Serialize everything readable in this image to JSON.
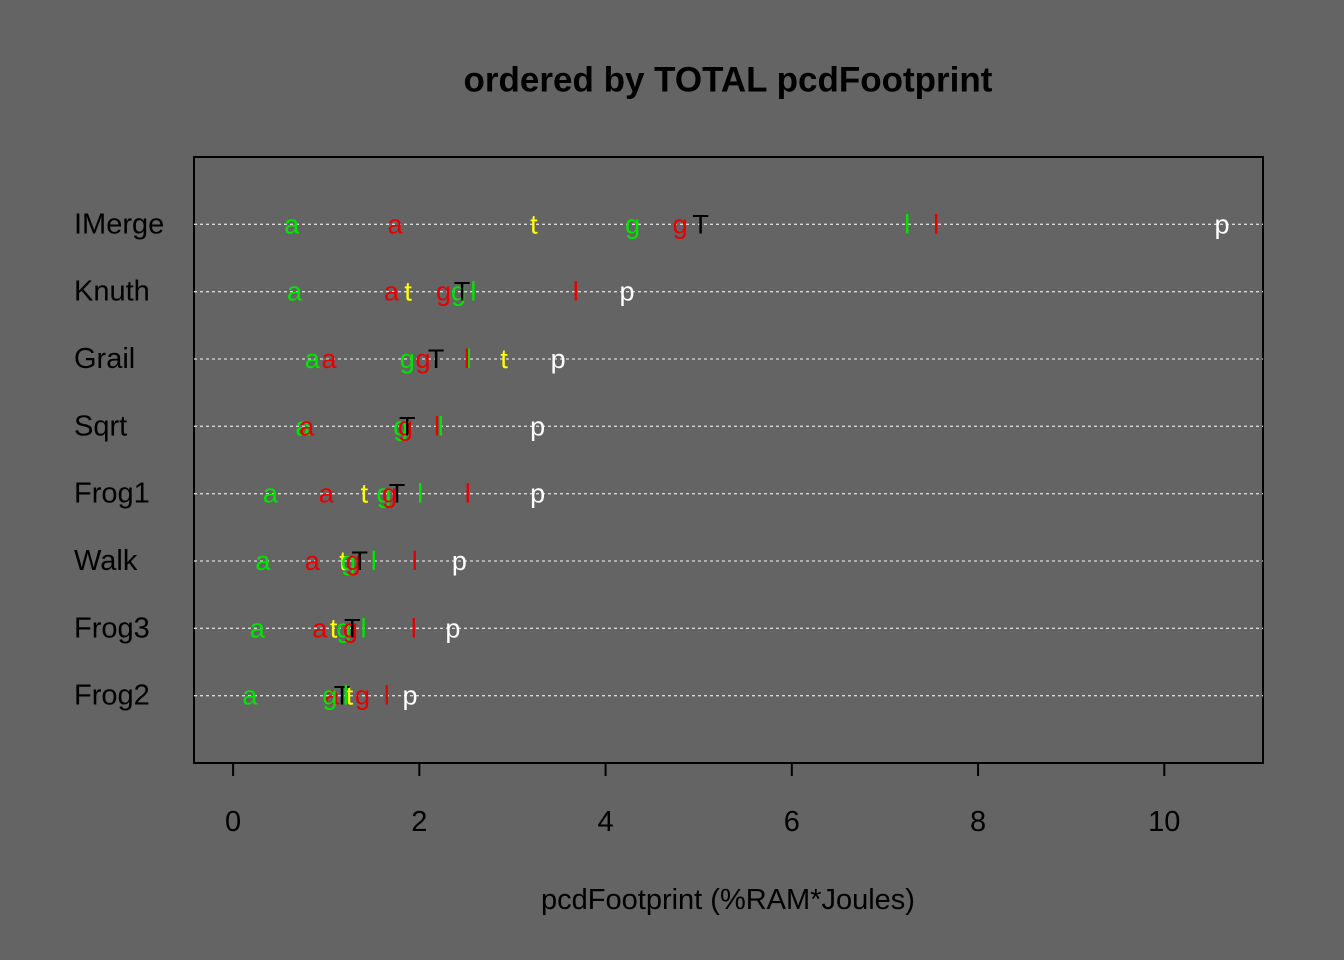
{
  "chart_data": {
    "type": "dot",
    "title": "ordered by TOTAL pcdFootprint",
    "x_label": "pcdFootprint (%RAM*Joules)",
    "categories": [
      "IMerge",
      "Knuth",
      "Grail",
      "Sqrt",
      "Frog1",
      "Walk",
      "Frog3",
      "Frog2"
    ],
    "xlim": [
      -0.42,
      11.06
    ],
    "xticks": [
      0,
      2,
      4,
      6,
      8,
      10
    ],
    "grid": true,
    "series": [
      {
        "symbol": "a",
        "color": "#00e600",
        "values": [
          0.63,
          0.66,
          0.85,
          0.75,
          0.4,
          0.32,
          0.26,
          0.18
        ]
      },
      {
        "symbol": "a",
        "color": "#e60000",
        "values": [
          1.74,
          1.7,
          1.03,
          0.79,
          1.0,
          0.85,
          0.93,
          1.06
        ]
      },
      {
        "symbol": "t",
        "color": "#ffff00",
        "values": [
          3.23,
          1.88,
          2.91,
          1.87,
          1.41,
          1.18,
          1.08,
          1.25
        ]
      },
      {
        "symbol": "g",
        "color": "#00e600",
        "values": [
          4.29,
          2.42,
          1.87,
          1.8,
          1.62,
          1.24,
          1.19,
          1.04
        ]
      },
      {
        "symbol": "g",
        "color": "#e60000",
        "values": [
          4.8,
          2.26,
          2.04,
          1.85,
          1.68,
          1.29,
          1.26,
          1.39
        ]
      },
      {
        "symbol": "T",
        "color": "#000000",
        "values": [
          5.02,
          2.46,
          2.18,
          1.87,
          1.76,
          1.36,
          1.28,
          1.17
        ]
      },
      {
        "symbol": "l",
        "color": "#00e600",
        "values": [
          7.24,
          2.58,
          2.53,
          2.23,
          2.01,
          1.51,
          1.4,
          1.21
        ]
      },
      {
        "symbol": "l",
        "color": "#e60000",
        "values": [
          7.55,
          3.68,
          2.51,
          2.19,
          2.52,
          1.95,
          1.94,
          1.65
        ]
      },
      {
        "symbol": "p",
        "color": "#ffffff",
        "values": [
          10.62,
          4.23,
          3.49,
          3.27,
          3.27,
          2.43,
          2.36,
          1.9
        ]
      }
    ]
  }
}
